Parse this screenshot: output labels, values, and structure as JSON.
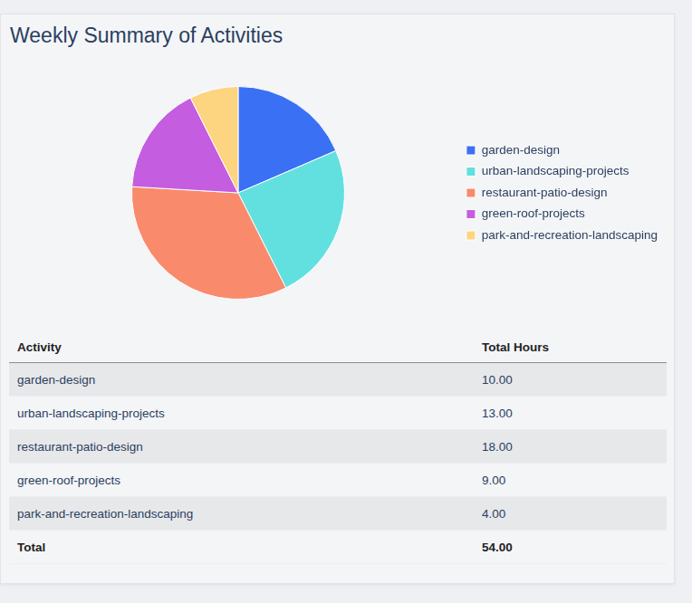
{
  "chart_data": {
    "type": "pie",
    "title": "Weekly Summary of Activities",
    "categories": [
      "garden-design",
      "urban-landscaping-projects",
      "restaurant-patio-design",
      "green-roof-projects",
      "park-and-recreation-landscaping"
    ],
    "values": [
      10,
      13,
      18,
      9,
      4
    ],
    "colors": [
      "#3a70f4",
      "#62e0e0",
      "#f98a6b",
      "#c45de0",
      "#fdd47f"
    ],
    "legend": "right"
  },
  "table": {
    "header": [
      "Activity",
      "Total Hours"
    ],
    "rows": [
      [
        "garden-design",
        "10.00"
      ],
      [
        "urban-landscaping-projects",
        "13.00"
      ],
      [
        "restaurant-patio-design",
        "18.00"
      ],
      [
        "green-roof-projects",
        "9.00"
      ],
      [
        "park-and-recreation-landscaping",
        "4.00"
      ]
    ],
    "total": [
      "Total",
      "54.00"
    ]
  }
}
